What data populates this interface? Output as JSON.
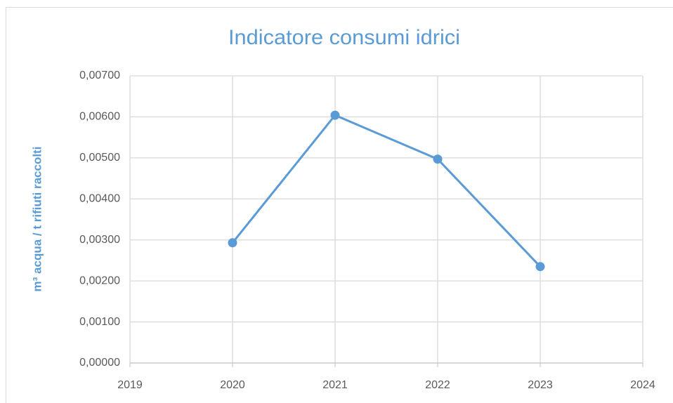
{
  "chart_data": {
    "type": "line",
    "title": "Indicatore consumi idrici",
    "y_label": "m³ acqua / t rifiuti raccolti",
    "x": [
      2020,
      2021,
      2022,
      2023
    ],
    "series": [
      {
        "name": "Indicatore consumi idrici",
        "color": "#5b9bd5",
        "values": [
          0.00293,
          0.00604,
          0.00497,
          0.00235
        ]
      }
    ],
    "xlim": [
      2019,
      2024
    ],
    "xticks": [
      2019,
      2020,
      2021,
      2022,
      2023,
      2024
    ],
    "ylim": [
      0,
      0.007
    ],
    "yticks": [
      {
        "value": 0,
        "label": "0,00000"
      },
      {
        "value": 0.001,
        "label": "0,00100"
      },
      {
        "value": 0.002,
        "label": "0,00200"
      },
      {
        "value": 0.003,
        "label": "0,00300"
      },
      {
        "value": 0.004,
        "label": "0,00400"
      },
      {
        "value": 0.005,
        "label": "0,00500"
      },
      {
        "value": 0.006,
        "label": "0,00600"
      },
      {
        "value": 0.007,
        "label": "0,00700"
      }
    ],
    "grid": true,
    "markers": true
  }
}
